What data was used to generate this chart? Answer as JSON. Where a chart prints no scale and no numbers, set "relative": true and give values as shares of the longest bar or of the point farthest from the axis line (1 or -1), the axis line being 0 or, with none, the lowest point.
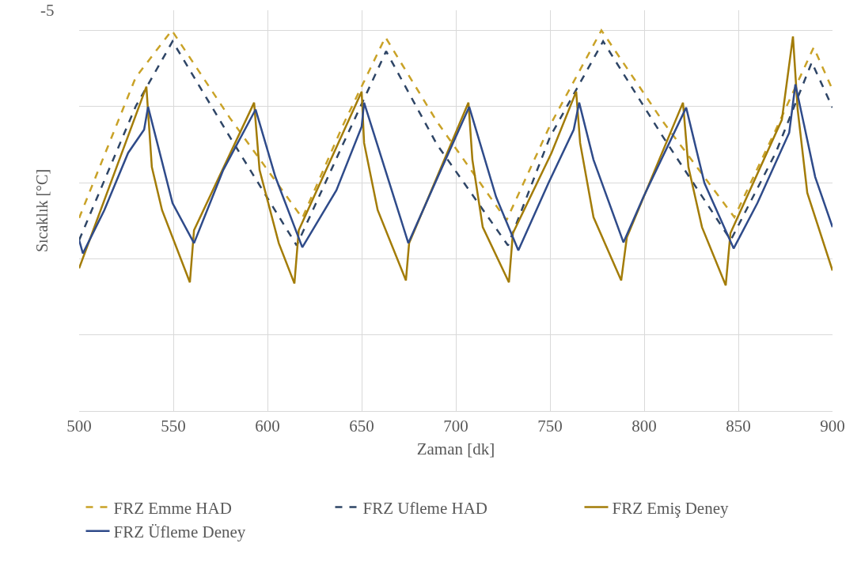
{
  "chart_data": {
    "type": "line",
    "relative": true,
    "xlabel": "Zaman [dk]",
    "ylabel": "Sıcaklık [°C]",
    "annotations": [
      "-5"
    ],
    "xlim": [
      500,
      900
    ],
    "xticks": [
      500,
      550,
      600,
      650,
      700,
      750,
      800,
      850,
      900
    ],
    "grid": true,
    "legend": "bottom",
    "marker": "none",
    "series": [
      {
        "name": "FRZ Emme HAD",
        "color": "#c9a227",
        "line_style": "dashed",
        "x": [
          500,
          530,
          549.2,
          580,
          618.5,
          640,
          662.6,
          690,
          726.9,
          750,
          777.3,
          810,
          847.9,
          870,
          890,
          900
        ],
        "values": [
          0.507,
          0.876,
          1.0,
          0.77,
          0.507,
          0.75,
          0.982,
          0.76,
          0.501,
          0.75,
          1.0,
          0.76,
          0.509,
          0.74,
          0.955,
          0.844
        ]
      },
      {
        "name": "FRZ Ufleme HAD",
        "color": "#2e4566",
        "line_style": "dashed",
        "x": [
          500,
          530,
          549.6,
          580,
          615.5,
          640,
          663,
          690,
          727.7,
          750,
          778.2,
          810,
          846,
          870,
          889,
          900
        ],
        "values": [
          0.449,
          0.8,
          0.971,
          0.72,
          0.435,
          0.7,
          0.945,
          0.7,
          0.435,
          0.72,
          0.971,
          0.72,
          0.449,
          0.68,
          0.916,
          0.797
        ]
      },
      {
        "name": "FRZ Emiş Deney",
        "color": "#a37c08",
        "line_style": "solid",
        "x": [
          500,
          535.7,
          538.6,
          544,
          558.8,
          561,
          592.9,
          595.8,
          606,
          614.3,
          616.6,
          650,
          651.3,
          658.5,
          673.5,
          675.2,
          706.7,
          708.8,
          714.3,
          728.2,
          730.3,
          750.8,
          763.9,
          766,
          773.1,
          787.8,
          790.8,
          820.6,
          823.5,
          830.7,
          843.3,
          845.8,
          873.1,
          879,
          881.5,
          886.6,
          900
        ],
        "values": [
          0.375,
          0.852,
          0.641,
          0.528,
          0.338,
          0.475,
          0.81,
          0.633,
          0.441,
          0.335,
          0.475,
          0.839,
          0.704,
          0.528,
          0.343,
          0.441,
          0.81,
          0.66,
          0.483,
          0.338,
          0.467,
          0.678,
          0.839,
          0.704,
          0.509,
          0.343,
          0.456,
          0.81,
          0.641,
          0.483,
          0.33,
          0.467,
          0.765,
          0.984,
          0.792,
          0.573,
          0.369
        ]
      },
      {
        "name": "FRZ Üfleme Deney",
        "color": "#2f4b8a",
        "line_style": "solid",
        "x": [
          500,
          502,
          513.4,
          526,
          534.5,
          536.6,
          549.6,
          561,
          576.5,
          593.7,
          604.2,
          618.5,
          636.6,
          650,
          651.3,
          674.8,
          689,
          707.1,
          721.4,
          733.2,
          749.2,
          762.6,
          765.5,
          773.1,
          789,
          799.6,
          822.3,
          832,
          847.5,
          860.1,
          877,
          880.3,
          890.8,
          900
        ],
        "values": [
          0.449,
          0.414,
          0.528,
          0.678,
          0.739,
          0.799,
          0.546,
          0.441,
          0.633,
          0.792,
          0.615,
          0.43,
          0.58,
          0.747,
          0.81,
          0.441,
          0.599,
          0.799,
          0.562,
          0.422,
          0.599,
          0.739,
          0.81,
          0.66,
          0.443,
          0.562,
          0.797,
          0.599,
          0.427,
          0.546,
          0.731,
          0.858,
          0.615,
          0.483
        ]
      }
    ]
  }
}
